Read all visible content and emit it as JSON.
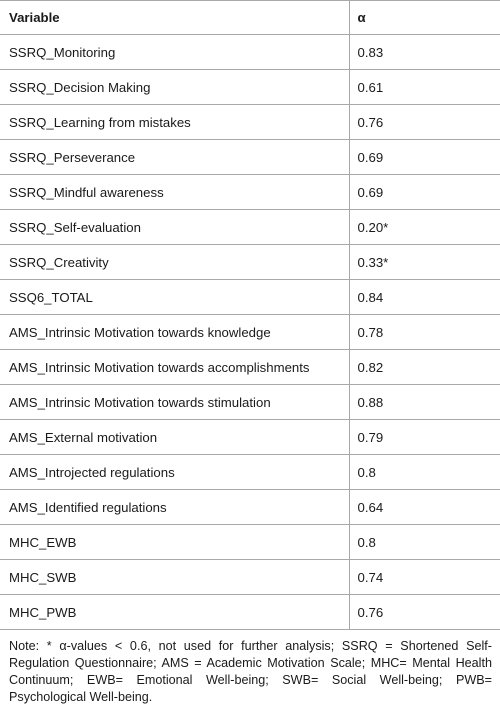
{
  "table": {
    "headers": {
      "variable": "Variable",
      "alpha": "α"
    },
    "rows": [
      {
        "variable": "SSRQ_Monitoring",
        "alpha": "0.83"
      },
      {
        "variable": "SSRQ_Decision Making",
        "alpha": "0.61"
      },
      {
        "variable": "SSRQ_Learning from mistakes",
        "alpha": "0.76"
      },
      {
        "variable": "SSRQ_Perseverance",
        "alpha": "0.69"
      },
      {
        "variable": "SSRQ_Mindful awareness",
        "alpha": "0.69"
      },
      {
        "variable": "SSRQ_Self-evaluation",
        "alpha": "0.20*"
      },
      {
        "variable": "SSRQ_Creativity",
        "alpha": "0.33*"
      },
      {
        "variable": "SSQ6_TOTAL",
        "alpha": "0.84"
      },
      {
        "variable": "AMS_Intrinsic Motivation towards knowledge",
        "alpha": "0.78"
      },
      {
        "variable": "AMS_Intrinsic Motivation towards accomplishments",
        "alpha": "0.82"
      },
      {
        "variable": "AMS_Intrinsic Motivation towards stimulation",
        "alpha": "0.88"
      },
      {
        "variable": "AMS_External motivation",
        "alpha": "0.79"
      },
      {
        "variable": "AMS_Introjected regulations",
        "alpha": "0.8"
      },
      {
        "variable": "AMS_Identified regulations",
        "alpha": "0.64"
      },
      {
        "variable": "MHC_EWB",
        "alpha": "0.8"
      },
      {
        "variable": "MHC_SWB",
        "alpha": "0.74"
      },
      {
        "variable": "MHC_PWB",
        "alpha": "0.76"
      }
    ]
  },
  "note": "Note: * α-values < 0.6, not used for further analysis; SSRQ = Shortened Self-Regulation Questionnaire; AMS = Academic Motivation Scale; MHC= Mental Health Continuum; EWB= Emotional Well-being; SWB= Social Well-being; PWB= Psychological Well-being."
}
